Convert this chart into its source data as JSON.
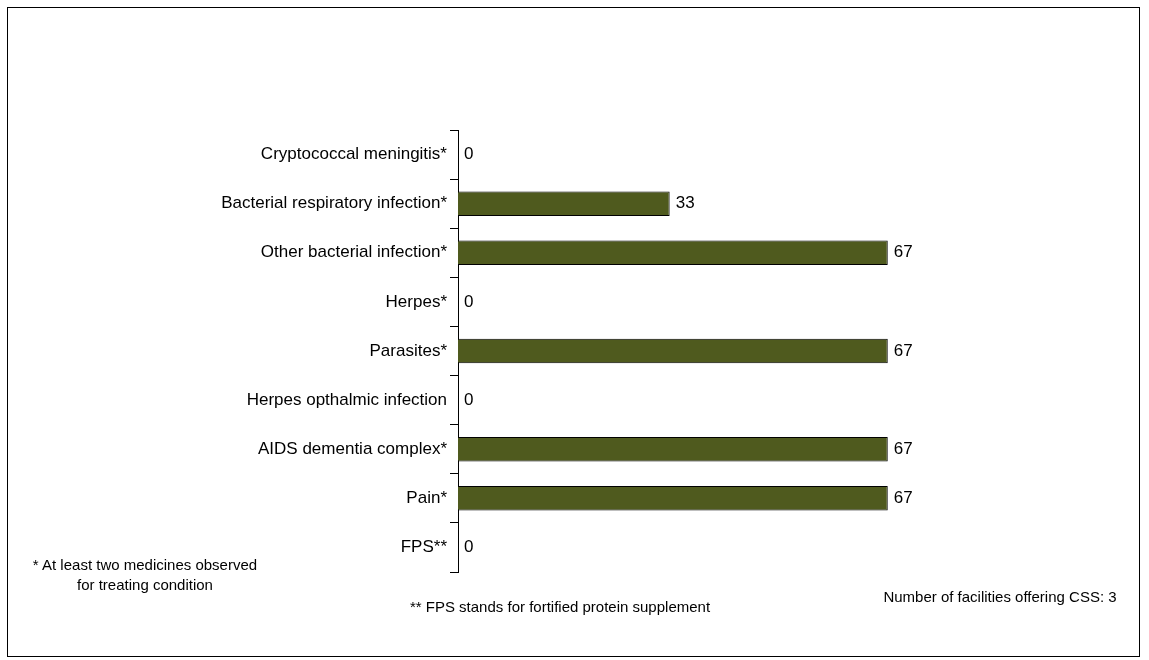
{
  "chart_data": {
    "type": "bar",
    "orientation": "horizontal",
    "categories": [
      "Cryptococcal meningitis*",
      "Bacterial respiratory infection*",
      "Other bacterial infection*",
      "Herpes*",
      "Parasites*",
      "Herpes opthalmic infection",
      "AIDS dementia complex*",
      "Pain*",
      "FPS**"
    ],
    "values": [
      0,
      33,
      67,
      0,
      67,
      0,
      67,
      67,
      0
    ],
    "color": "#4f5a1e",
    "data_labels": true,
    "grid": false,
    "legend": false,
    "tick_labels": "y",
    "annotations": [
      "* At least two medicines observed for treating condition",
      "** FPS stands for fortified protein supplement",
      "Number of facilities offering CSS: 3"
    ]
  }
}
